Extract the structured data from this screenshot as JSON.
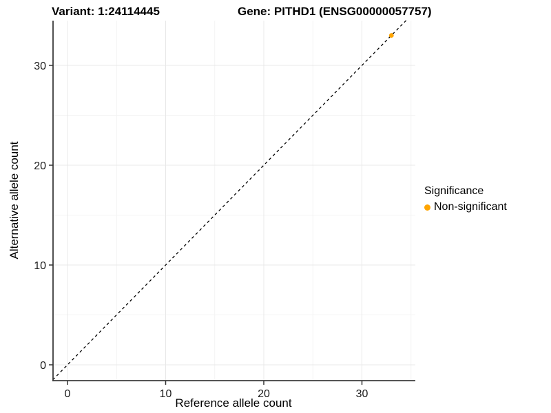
{
  "chart_data": {
    "type": "scatter",
    "titles": {
      "variant": "Variant: 1:24114445",
      "gene": "Gene: PITHD1 (ENSG00000057757)"
    },
    "xlabel": "Reference allele count",
    "ylabel": "Alternative allele count",
    "xlim": [
      -1.5,
      35.4
    ],
    "ylim": [
      -1.6,
      34.5
    ],
    "x_major_ticks": [
      0,
      10,
      20,
      30
    ],
    "x_minor_ticks": [
      5,
      15,
      25,
      35
    ],
    "y_major_ticks": [
      0,
      10,
      20,
      30
    ],
    "y_minor_ticks": [
      5,
      15,
      25
    ],
    "grid": "major and minor gridlines, no panel border, left and bottom axis lines only",
    "reference_line": {
      "kind": "identity y=x",
      "style": "dashed",
      "color": "#000000"
    },
    "series": [
      {
        "name": "Non-significant",
        "color": "#FFA500",
        "points": [
          {
            "x": 33,
            "y": 33
          }
        ]
      }
    ],
    "legend": {
      "title": "Significance",
      "position": "right",
      "items": [
        {
          "label": "Non-significant",
          "color": "#FFA500"
        }
      ]
    }
  },
  "colors": {
    "background": "#FFFFFF",
    "grid_major": "#E8E8E8",
    "grid_minor": "#F4F4F4",
    "axis_line": "#3C3C3C",
    "tick_mark": "#333333",
    "text": "#000000",
    "point": "#FFA500"
  }
}
